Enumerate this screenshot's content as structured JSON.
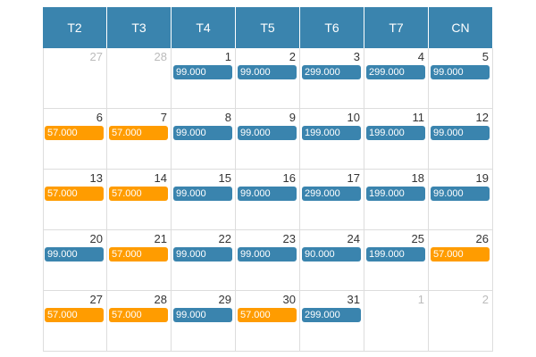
{
  "calendar": {
    "weekdays": [
      "T2",
      "T3",
      "T4",
      "T5",
      "T6",
      "T7",
      "CN"
    ],
    "weeks": [
      [
        {
          "day": "27",
          "muted": true
        },
        {
          "day": "28",
          "muted": true
        },
        {
          "day": "1",
          "price": "99.000",
          "color": "#3a84ae"
        },
        {
          "day": "2",
          "price": "99.000",
          "color": "#3a84ae"
        },
        {
          "day": "3",
          "price": "299.000",
          "color": "#3a84ae"
        },
        {
          "day": "4",
          "price": "299.000",
          "color": "#3a84ae"
        },
        {
          "day": "5",
          "price": "99.000",
          "color": "#3a84ae"
        }
      ],
      [
        {
          "day": "6",
          "price": "57.000",
          "color": "#ff9c00"
        },
        {
          "day": "7",
          "price": "57.000",
          "color": "#ff9c00"
        },
        {
          "day": "8",
          "price": "99.000",
          "color": "#3a84ae"
        },
        {
          "day": "9",
          "price": "99.000",
          "color": "#3a84ae"
        },
        {
          "day": "10",
          "price": "199.000",
          "color": "#3a84ae"
        },
        {
          "day": "11",
          "price": "199.000",
          "color": "#3a84ae"
        },
        {
          "day": "12",
          "price": "99.000",
          "color": "#3a84ae"
        }
      ],
      [
        {
          "day": "13",
          "price": "57.000",
          "color": "#ff9c00"
        },
        {
          "day": "14",
          "price": "57.000",
          "color": "#ff9c00"
        },
        {
          "day": "15",
          "price": "99.000",
          "color": "#3a84ae"
        },
        {
          "day": "16",
          "price": "99.000",
          "color": "#3a84ae"
        },
        {
          "day": "17",
          "price": "299.000",
          "color": "#3a84ae"
        },
        {
          "day": "18",
          "price": "199.000",
          "color": "#3a84ae"
        },
        {
          "day": "19",
          "price": "99.000",
          "color": "#3a84ae"
        }
      ],
      [
        {
          "day": "20",
          "price": "99.000",
          "color": "#3a84ae"
        },
        {
          "day": "21",
          "price": "57.000",
          "color": "#ff9c00"
        },
        {
          "day": "22",
          "price": "99.000",
          "color": "#3a84ae"
        },
        {
          "day": "23",
          "price": "99.000",
          "color": "#3a84ae"
        },
        {
          "day": "24",
          "price": "90.000",
          "color": "#3a84ae"
        },
        {
          "day": "25",
          "price": "199.000",
          "color": "#3a84ae"
        },
        {
          "day": "26",
          "price": "57.000",
          "color": "#ff9c00"
        }
      ],
      [
        {
          "day": "27",
          "price": "57.000",
          "color": "#ff9c00"
        },
        {
          "day": "28",
          "price": "57.000",
          "color": "#ff9c00"
        },
        {
          "day": "29",
          "price": "99.000",
          "color": "#3a84ae"
        },
        {
          "day": "30",
          "price": "57.000",
          "color": "#ff9c00"
        },
        {
          "day": "31",
          "price": "299.000",
          "color": "#3a84ae"
        },
        {
          "day": "1",
          "muted": true
        },
        {
          "day": "2",
          "muted": true
        }
      ]
    ]
  }
}
